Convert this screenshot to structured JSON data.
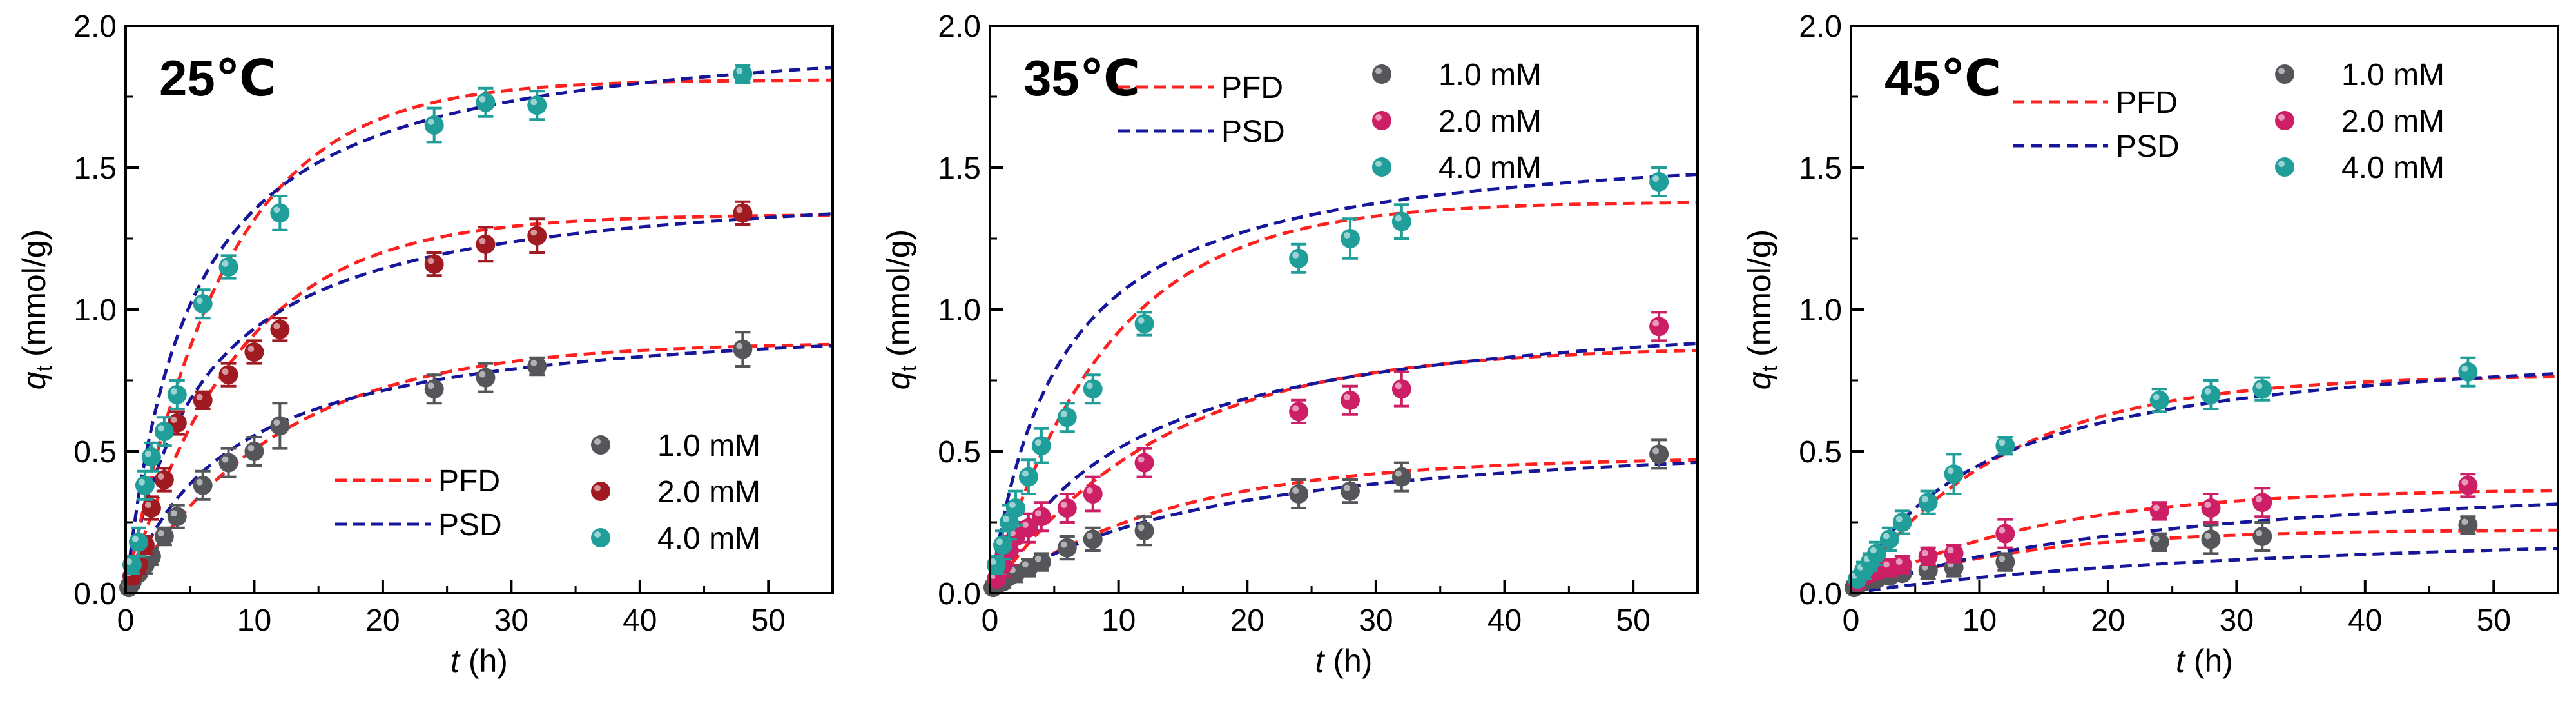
{
  "figure": {
    "ylabel_q": "q",
    "ylabel_sub": "t",
    "ylabel_unit": " (mmol/g)",
    "xlabel_t": "t",
    "xlabel_unit": " (h)"
  },
  "colors": {
    "pfd": "#ff2020",
    "psd": "#16169a",
    "c1": "#55565a",
    "c2": "#a01a22",
    "c2_alt": "#cc1f66",
    "c4": "#1f9e9a"
  },
  "chart_data": [
    {
      "type": "scatter",
      "title": "25℃",
      "xlabel": "t (h)",
      "ylabel": "qt (mmol/g)",
      "xlim": [
        0,
        55
      ],
      "ylim": [
        0,
        2.0
      ],
      "xticks": [
        "0",
        "10",
        "20",
        "30",
        "40",
        "50"
      ],
      "yticks": [
        "0.0",
        "0.5",
        "1.0",
        "1.5",
        "2.0"
      ],
      "fit_legend": {
        "position": "bottom-middle",
        "labels": [
          "PFD",
          "PSD"
        ]
      },
      "data_legend": {
        "position": "bottom-right",
        "labels": [
          "1.0 mM",
          "2.0 mM",
          "4.0 mM"
        ]
      },
      "series": [
        {
          "name": "1.0 mM",
          "color_key": "c1",
          "x": [
            0.25,
            0.5,
            1,
            1.5,
            2,
            3,
            4,
            6,
            8,
            10,
            12,
            24,
            28,
            32,
            48
          ],
          "y": [
            0.02,
            0.04,
            0.07,
            0.1,
            0.13,
            0.2,
            0.27,
            0.38,
            0.46,
            0.5,
            0.59,
            0.72,
            0.76,
            0.8,
            0.86
          ],
          "err": [
            0.02,
            0.02,
            0.02,
            0.03,
            0.03,
            0.03,
            0.04,
            0.05,
            0.05,
            0.05,
            0.08,
            0.05,
            0.05,
            0.03,
            0.06
          ],
          "pfd": {
            "qe": 0.885,
            "k": 0.085
          },
          "psd": {
            "qe": 1.0,
            "k": 0.125
          }
        },
        {
          "name": "2.0 mM",
          "color_key": "c2",
          "x": [
            0.5,
            1,
            1.5,
            2,
            3,
            4,
            6,
            8,
            10,
            12,
            24,
            28,
            32,
            48
          ],
          "y": [
            0.06,
            0.1,
            0.17,
            0.3,
            0.4,
            0.6,
            0.68,
            0.77,
            0.85,
            0.93,
            1.16,
            1.23,
            1.26,
            1.34
          ],
          "err": [
            0.02,
            0.03,
            0.03,
            0.04,
            0.04,
            0.04,
            0.03,
            0.04,
            0.04,
            0.04,
            0.04,
            0.06,
            0.06,
            0.04
          ],
          "pfd": {
            "qe": 1.335,
            "k": 0.115
          },
          "psd": {
            "qe": 1.48,
            "k": 0.115
          }
        },
        {
          "name": "4.0 mM",
          "color_key": "c4",
          "x": [
            0.5,
            1,
            1.5,
            2,
            3,
            4,
            6,
            8,
            12,
            24,
            28,
            32,
            48
          ],
          "y": [
            0.1,
            0.18,
            0.38,
            0.48,
            0.57,
            0.7,
            1.02,
            1.15,
            1.34,
            1.65,
            1.73,
            1.72,
            1.83
          ],
          "err": [
            0.03,
            0.05,
            0.05,
            0.05,
            0.05,
            0.05,
            0.05,
            0.04,
            0.06,
            0.06,
            0.05,
            0.05,
            0.03
          ],
          "pfd": {
            "qe": 1.81,
            "k": 0.13
          },
          "psd": {
            "qe": 2.02,
            "k": 0.1
          }
        }
      ]
    },
    {
      "type": "scatter",
      "title": "35℃",
      "xlabel": "t (h)",
      "ylabel": "qt (mmol/g)",
      "xlim": [
        0,
        55
      ],
      "ylim": [
        0,
        2.0
      ],
      "xticks": [
        "0",
        "10",
        "20",
        "30",
        "40",
        "50"
      ],
      "yticks": [
        "0.0",
        "0.5",
        "1.0",
        "1.5",
        "2.0"
      ],
      "fit_legend": {
        "position": "top-middle",
        "labels": [
          "PFD",
          "PSD"
        ]
      },
      "data_legend": {
        "position": "top-right",
        "labels": [
          "1.0 mM",
          "2.0 mM",
          "4.0 mM"
        ]
      },
      "series": [
        {
          "name": "1.0 mM",
          "color_key": "c1",
          "x": [
            0.25,
            0.5,
            1,
            1.5,
            2,
            3,
            4,
            6,
            8,
            12,
            24,
            28,
            32,
            52
          ],
          "y": [
            0.02,
            0.03,
            0.04,
            0.06,
            0.07,
            0.09,
            0.11,
            0.16,
            0.19,
            0.22,
            0.35,
            0.36,
            0.41,
            0.49
          ],
          "err": [
            0.02,
            0.02,
            0.02,
            0.02,
            0.03,
            0.03,
            0.03,
            0.04,
            0.04,
            0.05,
            0.05,
            0.04,
            0.05,
            0.05
          ],
          "pfd": {
            "qe": 0.48,
            "k": 0.07
          },
          "psd": {
            "qe": 0.6,
            "k": 0.1
          }
        },
        {
          "name": "2.0 mM",
          "color_key": "c2_alt",
          "x": [
            0.5,
            1,
            1.5,
            2,
            3,
            4,
            6,
            8,
            12,
            24,
            28,
            32,
            52
          ],
          "y": [
            0.05,
            0.1,
            0.15,
            0.2,
            0.23,
            0.27,
            0.3,
            0.35,
            0.46,
            0.64,
            0.68,
            0.72,
            0.94
          ],
          "err": [
            0.02,
            0.04,
            0.05,
            0.05,
            0.05,
            0.05,
            0.05,
            0.06,
            0.05,
            0.04,
            0.05,
            0.06,
            0.05
          ],
          "pfd": {
            "qe": 0.87,
            "k": 0.075
          },
          "psd": {
            "qe": 1.05,
            "k": 0.09
          }
        },
        {
          "name": "4.0 mM",
          "color_key": "c4",
          "x": [
            0.5,
            1,
            1.5,
            2,
            3,
            4,
            6,
            8,
            12,
            24,
            28,
            32,
            52
          ],
          "y": [
            0.1,
            0.17,
            0.25,
            0.3,
            0.41,
            0.52,
            0.62,
            0.72,
            0.95,
            1.18,
            1.25,
            1.31,
            1.45
          ],
          "err": [
            0.03,
            0.05,
            0.06,
            0.06,
            0.06,
            0.06,
            0.05,
            0.05,
            0.04,
            0.05,
            0.07,
            0.06,
            0.05
          ],
          "pfd": {
            "qe": 1.38,
            "k": 0.11
          },
          "psd": {
            "qe": 1.62,
            "k": 0.115
          }
        }
      ]
    },
    {
      "type": "scatter",
      "title": "45℃",
      "xlabel": "t (h)",
      "ylabel": "qt (mmol/g)",
      "xlim": [
        0,
        55
      ],
      "ylim": [
        0,
        2.0
      ],
      "xticks": [
        "0",
        "10",
        "20",
        "30",
        "40",
        "50"
      ],
      "yticks": [
        "0.0",
        "0.5",
        "1.0",
        "1.5",
        "2.0"
      ],
      "fit_legend": {
        "position": "top-middle",
        "labels": [
          "PFD",
          "PSD"
        ]
      },
      "data_legend": {
        "position": "top-right",
        "labels": [
          "1.0 mM",
          "2.0 mM",
          "4.0 mM"
        ]
      },
      "series": [
        {
          "name": "1.0 mM",
          "color_key": "c1",
          "x": [
            0.25,
            0.5,
            1,
            1.5,
            2,
            3,
            4,
            6,
            8,
            12,
            24,
            28,
            32,
            48
          ],
          "y": [
            0.02,
            0.03,
            0.04,
            0.05,
            0.05,
            0.06,
            0.07,
            0.08,
            0.09,
            0.11,
            0.18,
            0.19,
            0.2,
            0.24
          ],
          "err": [
            0.02,
            0.02,
            0.02,
            0.02,
            0.02,
            0.02,
            0.02,
            0.03,
            0.03,
            0.03,
            0.03,
            0.05,
            0.05,
            0.03
          ],
          "pfd": {
            "qe": 0.225,
            "k": 0.08
          },
          "psd": {
            "qe": 0.27,
            "k": 0.095
          }
        },
        {
          "name": "2.0 mM",
          "color_key": "c2_alt",
          "x": [
            0.5,
            1,
            1.5,
            2,
            3,
            4,
            6,
            8,
            12,
            24,
            28,
            32,
            48
          ],
          "y": [
            0.04,
            0.06,
            0.07,
            0.08,
            0.09,
            0.1,
            0.13,
            0.14,
            0.21,
            0.29,
            0.3,
            0.32,
            0.38
          ],
          "err": [
            0.02,
            0.02,
            0.02,
            0.03,
            0.03,
            0.03,
            0.03,
            0.03,
            0.05,
            0.03,
            0.05,
            0.05,
            0.04
          ],
          "pfd": {
            "qe": 0.37,
            "k": 0.07
          },
          "psd": {
            "qe": 0.46,
            "k": 0.085
          }
        },
        {
          "name": "4.0 mM",
          "color_key": "c4",
          "x": [
            0.5,
            1,
            1.5,
            2,
            3,
            4,
            6,
            8,
            12,
            24,
            28,
            32,
            48
          ],
          "y": [
            0.05,
            0.08,
            0.11,
            0.14,
            0.19,
            0.25,
            0.32,
            0.42,
            0.52,
            0.68,
            0.7,
            0.72,
            0.78
          ],
          "err": [
            0.02,
            0.03,
            0.03,
            0.04,
            0.04,
            0.04,
            0.04,
            0.07,
            0.03,
            0.04,
            0.05,
            0.04,
            0.05
          ],
          "pfd": {
            "qe": 0.77,
            "k": 0.085
          },
          "psd": {
            "qe": 0.92,
            "k": 0.105
          }
        }
      ]
    }
  ]
}
